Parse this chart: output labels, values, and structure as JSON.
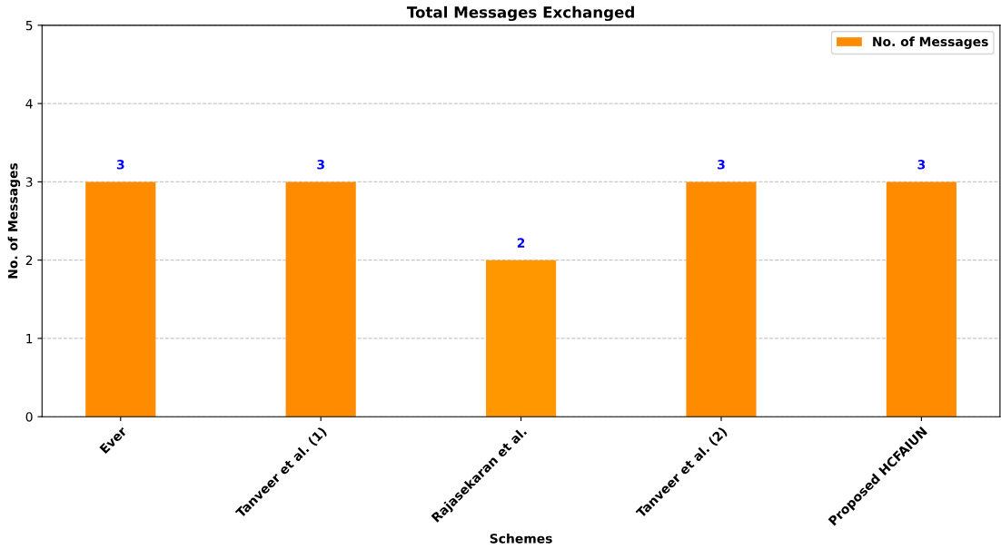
{
  "chart_data": {
    "type": "bar",
    "title": "Total Messages Exchanged",
    "xlabel": "Schemes",
    "ylabel": "No. of Messages",
    "categories": [
      "Ever",
      "Tanveer et al. (1)",
      "Rajasekaran et al.",
      "Tanveer et al. (2)",
      "Proposed HCFAIUN"
    ],
    "series": [
      {
        "name": "No. of Messages",
        "colors": [
          "#ff8c00",
          "#ff8c00",
          "#ff9800",
          "#ff8c00",
          "#ff8c00"
        ],
        "values": [
          3,
          3,
          2,
          3,
          3
        ]
      }
    ],
    "ylim": [
      0,
      5
    ],
    "yticks": [
      0,
      1,
      2,
      3,
      4,
      5
    ],
    "grid": "y",
    "legend": "top right",
    "data_labels": true
  }
}
